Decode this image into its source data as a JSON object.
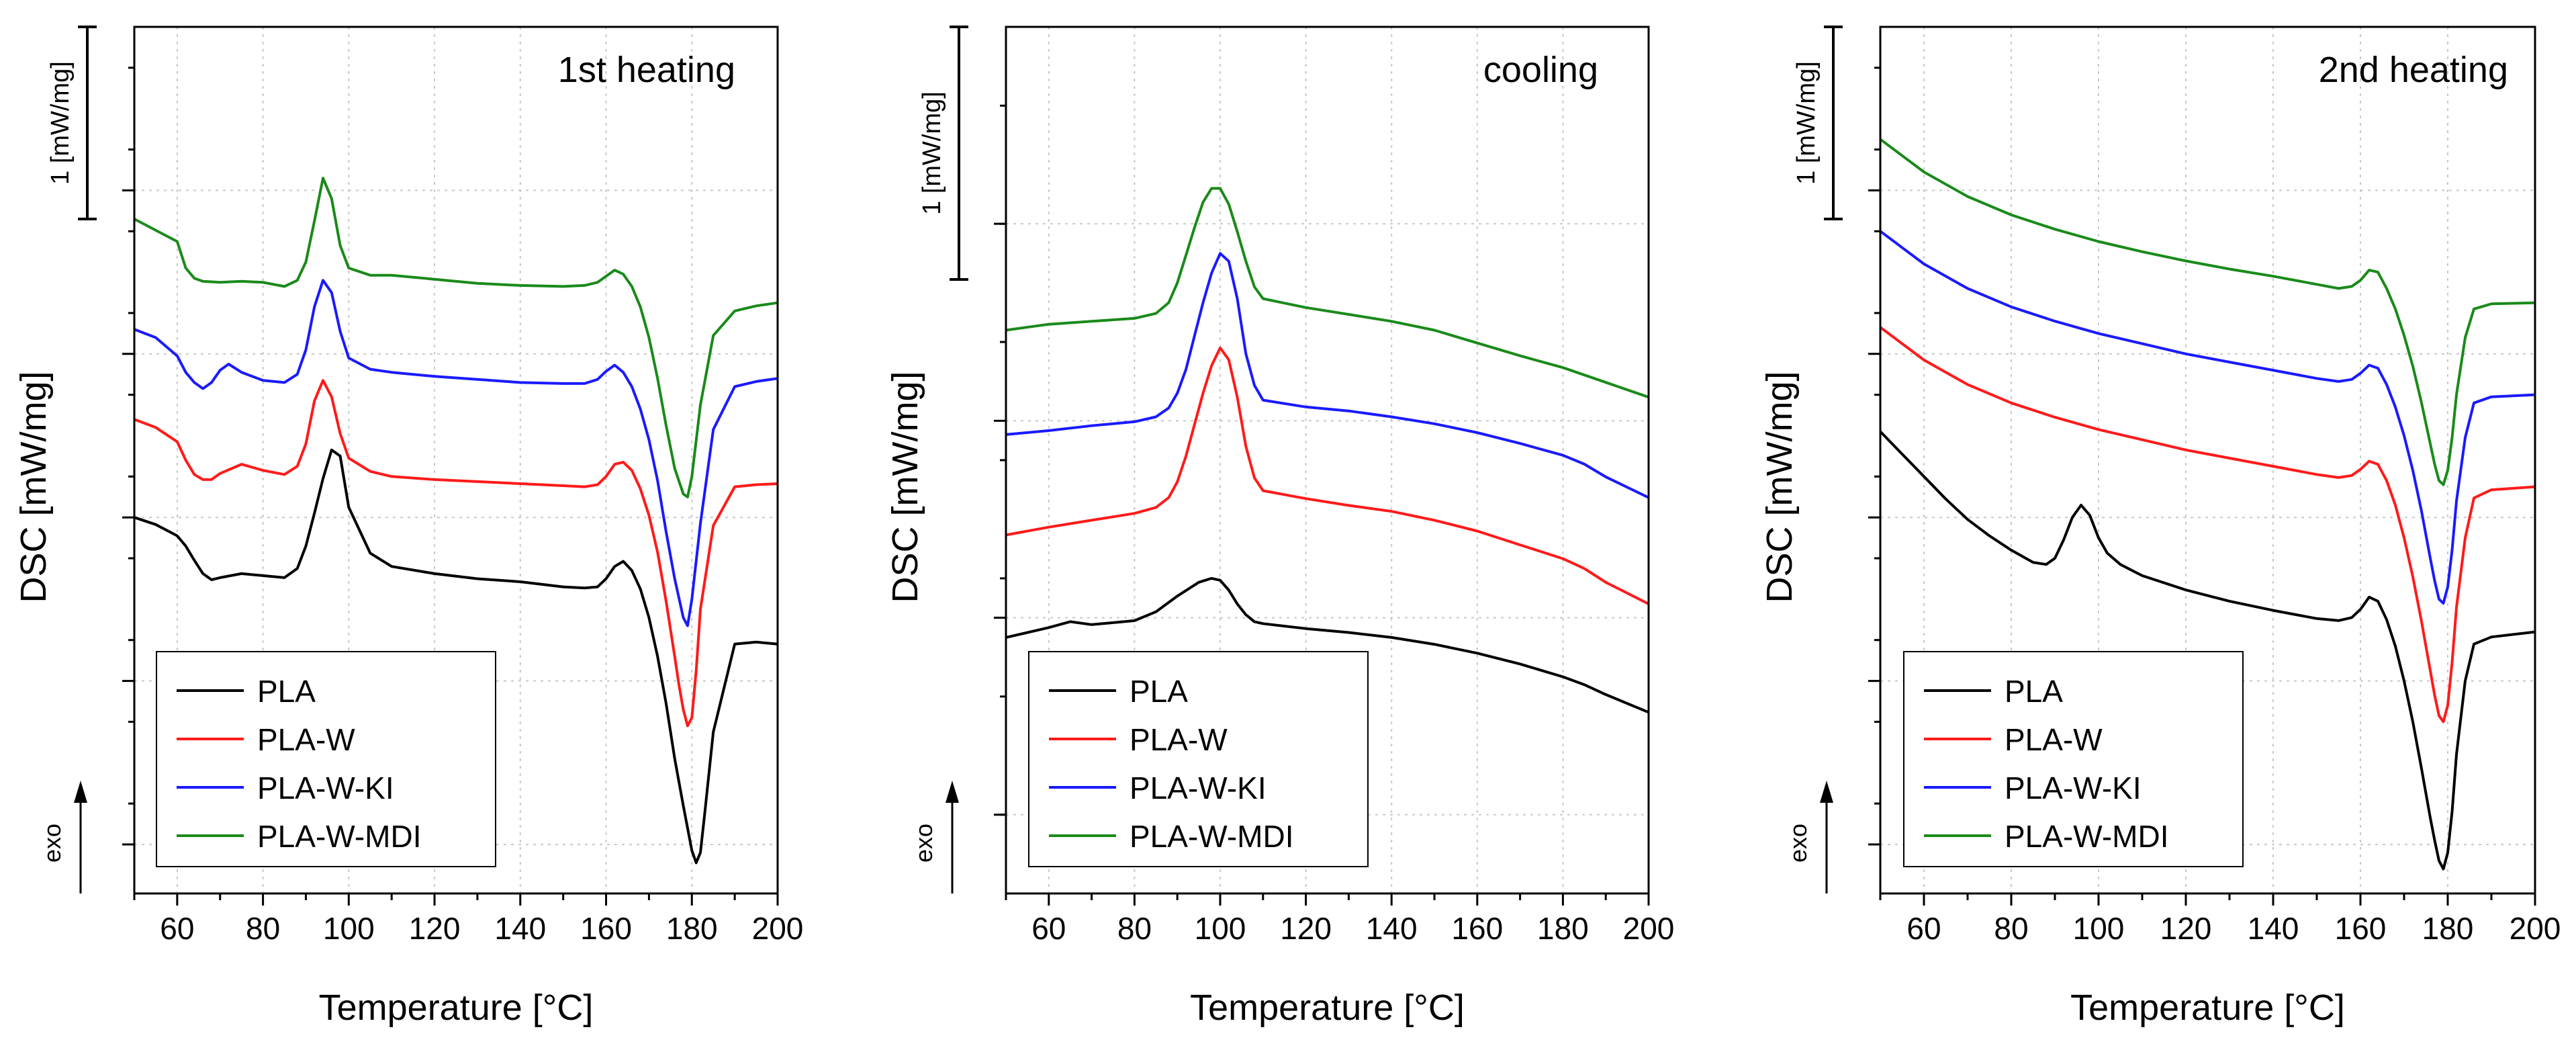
{
  "chart_data": [
    {
      "type": "line",
      "title": "1st heating",
      "xlabel": "Temperature [°C]",
      "ylabel": "DSC [mW/mg]",
      "xlim": [
        50,
        200
      ],
      "xticks": [
        "60",
        "80",
        "100",
        "120",
        "140",
        "160",
        "180",
        "200"
      ],
      "scale_bar_label": "1 [mW/mg]",
      "exo_label": "exo",
      "series": [
        {
          "name": "PLA-W-MDI",
          "color": "#1a8a1a",
          "x": [
            50,
            60,
            62,
            64,
            66,
            70,
            75,
            80,
            85,
            88,
            90,
            92,
            94,
            96,
            98,
            100,
            105,
            110,
            120,
            130,
            140,
            150,
            155,
            158,
            160,
            162,
            164,
            166,
            168,
            170,
            172,
            174,
            176,
            178,
            179,
            180,
            182,
            185,
            190,
            195,
            200
          ],
          "y": [
            14.6,
            13.5,
            12.2,
            11.7,
            11.55,
            11.5,
            11.55,
            11.5,
            11.3,
            11.6,
            12.5,
            14.5,
            16.6,
            15.6,
            13.3,
            12.2,
            11.85,
            11.85,
            11.65,
            11.45,
            11.35,
            11.3,
            11.35,
            11.5,
            11.8,
            12.1,
            11.9,
            11.3,
            10.3,
            8.8,
            6.8,
            4.5,
            2.4,
            1.15,
            1.0,
            2.0,
            5.5,
            8.9,
            10.1,
            10.35,
            10.5
          ]
        },
        {
          "name": "PLA-W-KI",
          "color": "#1a1aff",
          "x": [
            50,
            55,
            60,
            62,
            64,
            66,
            68,
            70,
            72,
            75,
            80,
            85,
            88,
            90,
            92,
            94,
            96,
            98,
            100,
            105,
            110,
            120,
            130,
            140,
            150,
            155,
            158,
            160,
            162,
            164,
            166,
            168,
            170,
            172,
            174,
            176,
            178,
            179,
            180,
            182,
            185,
            190,
            195,
            200
          ],
          "y": [
            9.2,
            8.8,
            7.9,
            7.1,
            6.6,
            6.3,
            6.6,
            7.2,
            7.5,
            7.1,
            6.7,
            6.6,
            7.0,
            8.2,
            10.3,
            11.6,
            11.0,
            9.1,
            7.8,
            7.25,
            7.1,
            6.9,
            6.75,
            6.6,
            6.55,
            6.55,
            6.75,
            7.15,
            7.45,
            7.1,
            6.4,
            5.3,
            3.8,
            1.8,
            -0.7,
            -3.0,
            -4.9,
            -5.3,
            -4.0,
            -0.3,
            4.3,
            6.4,
            6.65,
            6.8
          ]
        },
        {
          "name": "PLA-W",
          "color": "#ff1a1a",
          "x": [
            50,
            55,
            60,
            62,
            64,
            66,
            68,
            70,
            75,
            80,
            85,
            88,
            90,
            92,
            94,
            96,
            98,
            100,
            105,
            110,
            120,
            130,
            140,
            150,
            155,
            158,
            160,
            162,
            164,
            166,
            168,
            170,
            172,
            174,
            176,
            177,
            178,
            179,
            180,
            181,
            182,
            185,
            190,
            195,
            200
          ],
          "y": [
            4.8,
            4.4,
            3.7,
            2.8,
            2.1,
            1.85,
            1.85,
            2.15,
            2.6,
            2.3,
            2.1,
            2.5,
            3.6,
            5.7,
            6.7,
            5.9,
            4.1,
            2.9,
            2.25,
            2.0,
            1.85,
            1.75,
            1.65,
            1.55,
            1.5,
            1.6,
            2.0,
            2.6,
            2.7,
            2.3,
            1.4,
            0.1,
            -1.7,
            -4.1,
            -6.8,
            -8.2,
            -9.4,
            -10.2,
            -9.8,
            -7.5,
            -4.5,
            -0.4,
            1.5,
            1.6,
            1.65
          ]
        },
        {
          "name": "PLA",
          "color": "#000000",
          "x": [
            50,
            55,
            60,
            62,
            64,
            66,
            68,
            70,
            75,
            80,
            85,
            88,
            90,
            92,
            94,
            96,
            98,
            100,
            105,
            110,
            120,
            130,
            140,
            150,
            155,
            158,
            160,
            162,
            164,
            166,
            168,
            170,
            172,
            174,
            176,
            178,
            180,
            181,
            182,
            183,
            185,
            190,
            195,
            200
          ],
          "y": [
            0.0,
            -0.35,
            -0.9,
            -1.4,
            -2.1,
            -2.75,
            -3.05,
            -2.95,
            -2.75,
            -2.85,
            -2.95,
            -2.5,
            -1.4,
            0.2,
            1.9,
            3.3,
            3.0,
            0.5,
            -1.75,
            -2.4,
            -2.75,
            -3.0,
            -3.15,
            -3.4,
            -3.45,
            -3.4,
            -3.0,
            -2.4,
            -2.15,
            -2.6,
            -3.5,
            -4.9,
            -6.8,
            -9.1,
            -11.8,
            -14.1,
            -16.3,
            -16.9,
            -16.4,
            -14.5,
            -10.5,
            -6.2,
            -6.1,
            -6.2
          ]
        }
      ],
      "legend": [
        "PLA",
        "PLA-W",
        "PLA-W-KI",
        "PLA-W-MDI"
      ]
    },
    {
      "type": "line",
      "title": "cooling",
      "xlabel": "Temperature [°C]",
      "ylabel": "DSC [mW/mg]",
      "xlim": [
        50,
        200
      ],
      "xticks": [
        "60",
        "80",
        "100",
        "120",
        "140",
        "160",
        "180",
        "200"
      ],
      "scale_bar_label": "1 [mW/mg]",
      "exo_label": "exo",
      "series": [
        {
          "name": "PLA-W-MDI",
          "color": "#1a8a1a",
          "x": [
            50,
            60,
            70,
            80,
            85,
            88,
            90,
            92,
            94,
            96,
            98,
            100,
            102,
            104,
            106,
            108,
            110,
            120,
            130,
            140,
            150,
            160,
            170,
            180,
            190,
            200
          ],
          "y": [
            8.6,
            8.9,
            9.05,
            9.2,
            9.45,
            10.0,
            11.0,
            12.4,
            13.8,
            15.1,
            15.8,
            15.8,
            15.0,
            13.6,
            12.1,
            10.8,
            10.2,
            9.75,
            9.4,
            9.05,
            8.6,
            7.95,
            7.3,
            6.7,
            5.95,
            5.2
          ]
        },
        {
          "name": "PLA-W-KI",
          "color": "#1a1aff",
          "x": [
            50,
            60,
            70,
            80,
            85,
            88,
            90,
            92,
            94,
            96,
            98,
            100,
            102,
            104,
            106,
            108,
            110,
            120,
            130,
            140,
            150,
            160,
            170,
            180,
            185,
            190,
            200
          ],
          "y": [
            3.3,
            3.5,
            3.75,
            3.95,
            4.2,
            4.65,
            5.4,
            6.6,
            8.3,
            10.0,
            11.5,
            12.5,
            12.1,
            10.2,
            7.4,
            5.8,
            5.05,
            4.7,
            4.5,
            4.2,
            3.85,
            3.4,
            2.85,
            2.25,
            1.8,
            1.15,
            0.1
          ]
        },
        {
          "name": "PLA-W",
          "color": "#ff1a1a",
          "x": [
            50,
            60,
            70,
            80,
            85,
            88,
            90,
            92,
            94,
            96,
            98,
            100,
            102,
            104,
            106,
            108,
            110,
            120,
            130,
            140,
            150,
            160,
            170,
            180,
            185,
            190,
            200
          ],
          "y": [
            -1.8,
            -1.4,
            -1.05,
            -0.7,
            -0.4,
            0.1,
            0.9,
            2.2,
            3.8,
            5.4,
            6.8,
            7.7,
            7.1,
            5.2,
            2.7,
            1.1,
            0.45,
            0.05,
            -0.3,
            -0.6,
            -1.05,
            -1.6,
            -2.3,
            -3.0,
            -3.5,
            -4.2,
            -5.3
          ]
        },
        {
          "name": "PLA",
          "color": "#000000",
          "x": [
            50,
            60,
            65,
            70,
            80,
            85,
            90,
            95,
            98,
            100,
            102,
            104,
            106,
            108,
            110,
            120,
            130,
            140,
            150,
            160,
            170,
            180,
            185,
            190,
            200
          ],
          "y": [
            -7.0,
            -6.5,
            -6.2,
            -6.35,
            -6.15,
            -5.7,
            -4.9,
            -4.2,
            -4.0,
            -4.1,
            -4.6,
            -5.3,
            -5.85,
            -6.2,
            -6.3,
            -6.55,
            -6.75,
            -7.0,
            -7.35,
            -7.8,
            -8.35,
            -9.0,
            -9.4,
            -9.9,
            -10.8
          ]
        }
      ],
      "legend": [
        "PLA",
        "PLA-W",
        "PLA-W-KI",
        "PLA-W-MDI"
      ]
    },
    {
      "type": "line",
      "title": "2nd heating",
      "xlabel": "Temperature [°C]",
      "ylabel": "DSC [mW/mg]",
      "xlim": [
        50,
        200
      ],
      "xticks": [
        "60",
        "80",
        "100",
        "120",
        "140",
        "160",
        "180",
        "200"
      ],
      "scale_bar_label": "1 [mW/mg]",
      "exo_label": "exo",
      "series": [
        {
          "name": "PLA-W-MDI",
          "color": "#1a8a1a",
          "x": [
            50,
            60,
            70,
            80,
            90,
            100,
            110,
            120,
            130,
            140,
            150,
            155,
            158,
            160,
            162,
            164,
            166,
            168,
            170,
            172,
            174,
            176,
            177,
            178,
            179,
            180,
            181,
            182,
            184,
            186,
            190,
            200
          ],
          "y": [
            18.5,
            16.9,
            15.7,
            14.8,
            14.1,
            13.5,
            13.0,
            12.55,
            12.15,
            11.8,
            11.4,
            11.2,
            11.3,
            11.6,
            12.1,
            12.0,
            11.2,
            10.2,
            8.9,
            7.4,
            5.6,
            3.6,
            2.6,
            1.8,
            1.6,
            2.3,
            3.9,
            6.0,
            8.8,
            10.2,
            10.45,
            10.5
          ]
        },
        {
          "name": "PLA-W-KI",
          "color": "#1a1aff",
          "x": [
            50,
            60,
            70,
            80,
            90,
            100,
            110,
            120,
            130,
            140,
            150,
            155,
            158,
            160,
            162,
            164,
            166,
            168,
            170,
            172,
            174,
            176,
            177,
            178,
            179,
            180,
            181,
            182,
            184,
            186,
            190,
            200
          ],
          "y": [
            14.0,
            12.4,
            11.2,
            10.3,
            9.6,
            9.0,
            8.5,
            8.0,
            7.6,
            7.2,
            6.8,
            6.65,
            6.75,
            7.05,
            7.45,
            7.3,
            6.5,
            5.4,
            4.0,
            2.3,
            0.3,
            -2.0,
            -3.1,
            -4.0,
            -4.2,
            -3.4,
            -1.6,
            0.8,
            3.9,
            5.6,
            5.9,
            6.0
          ]
        },
        {
          "name": "PLA-W",
          "color": "#ff1a1a",
          "x": [
            50,
            60,
            70,
            80,
            90,
            100,
            110,
            120,
            130,
            140,
            150,
            155,
            158,
            160,
            162,
            164,
            166,
            168,
            170,
            172,
            174,
            176,
            177,
            178,
            179,
            180,
            181,
            182,
            184,
            186,
            190,
            200
          ],
          "y": [
            9.3,
            7.7,
            6.5,
            5.6,
            4.9,
            4.3,
            3.8,
            3.3,
            2.9,
            2.5,
            2.1,
            1.95,
            2.05,
            2.35,
            2.75,
            2.6,
            1.8,
            0.6,
            -1.0,
            -2.9,
            -5.1,
            -7.5,
            -8.7,
            -9.7,
            -10.0,
            -9.2,
            -7.1,
            -4.4,
            -1.0,
            0.95,
            1.35,
            1.5
          ]
        },
        {
          "name": "PLA",
          "color": "#000000",
          "x": [
            50,
            55,
            60,
            65,
            70,
            75,
            80,
            85,
            88,
            90,
            92,
            94,
            96,
            98,
            100,
            102,
            105,
            110,
            120,
            130,
            140,
            150,
            155,
            158,
            160,
            162,
            164,
            166,
            168,
            170,
            172,
            174,
            176,
            177,
            178,
            179,
            180,
            181,
            182,
            184,
            186,
            190,
            200
          ],
          "y": [
            4.2,
            3.1,
            2.0,
            0.9,
            -0.1,
            -0.9,
            -1.6,
            -2.2,
            -2.3,
            -2.0,
            -1.1,
            0.0,
            0.6,
            0.1,
            -1.0,
            -1.75,
            -2.3,
            -2.85,
            -3.55,
            -4.1,
            -4.55,
            -4.95,
            -5.05,
            -4.9,
            -4.5,
            -3.9,
            -4.1,
            -5.0,
            -6.3,
            -8.0,
            -10.0,
            -12.3,
            -14.7,
            -15.8,
            -16.8,
            -17.2,
            -16.4,
            -14.4,
            -11.6,
            -8.0,
            -6.2,
            -5.85,
            -5.6
          ]
        }
      ],
      "legend": [
        "PLA",
        "PLA-W",
        "PLA-W-KI",
        "PLA-W-MDI"
      ]
    }
  ]
}
